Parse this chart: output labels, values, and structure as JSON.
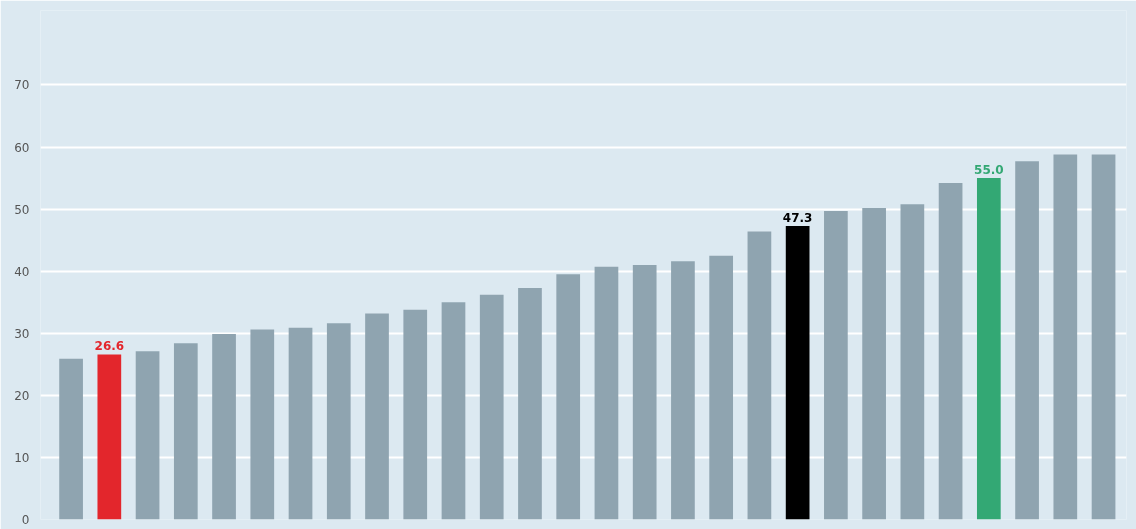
{
  "chart_data": {
    "type": "bar",
    "categories": [
      null,
      null,
      null,
      null,
      null,
      null,
      null,
      null,
      null,
      null,
      null,
      null,
      null,
      null,
      null,
      null,
      null,
      null,
      null,
      null,
      null,
      null,
      null,
      null,
      null,
      null,
      null,
      null
    ],
    "values": [
      25.9,
      26.6,
      27.1,
      28.4,
      29.9,
      30.6,
      30.9,
      31.6,
      33.2,
      33.8,
      35.0,
      36.2,
      37.3,
      39.5,
      40.7,
      41.0,
      41.6,
      42.5,
      46.4,
      47.3,
      49.7,
      50.2,
      50.8,
      54.2,
      55.0,
      57.7,
      58.8,
      58.8
    ],
    "colors": [
      "#8fa4b0",
      "#e3262c",
      "#8fa4b0",
      "#8fa4b0",
      "#8fa4b0",
      "#8fa4b0",
      "#8fa4b0",
      "#8fa4b0",
      "#8fa4b0",
      "#8fa4b0",
      "#8fa4b0",
      "#8fa4b0",
      "#8fa4b0",
      "#8fa4b0",
      "#8fa4b0",
      "#8fa4b0",
      "#8fa4b0",
      "#8fa4b0",
      "#8fa4b0",
      "#000000",
      "#8fa4b0",
      "#8fa4b0",
      "#8fa4b0",
      "#8fa4b0",
      "#33a874",
      "#8fa4b0",
      "#8fa4b0",
      "#8fa4b0"
    ],
    "value_labels": [
      null,
      "26.6",
      null,
      null,
      null,
      null,
      null,
      null,
      null,
      null,
      null,
      null,
      null,
      null,
      null,
      null,
      null,
      null,
      null,
      "47.3",
      null,
      null,
      null,
      null,
      "55.0",
      null,
      null,
      null
    ],
    "ylim": [
      0,
      82
    ],
    "yticks": [
      0,
      10,
      20,
      30,
      40,
      50,
      60,
      70
    ],
    "grid": "y"
  }
}
